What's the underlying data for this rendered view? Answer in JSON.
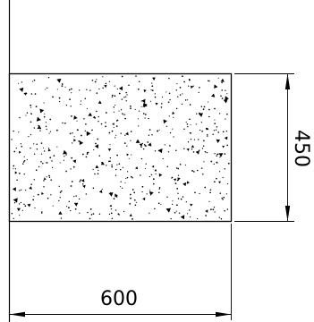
{
  "drawing": {
    "dimensions": {
      "width_label": "600",
      "height_label": "450"
    },
    "colors": {
      "line": "#000000",
      "background": "#ffffff",
      "hatch": "#000000"
    },
    "hatch_pattern": "concrete"
  }
}
